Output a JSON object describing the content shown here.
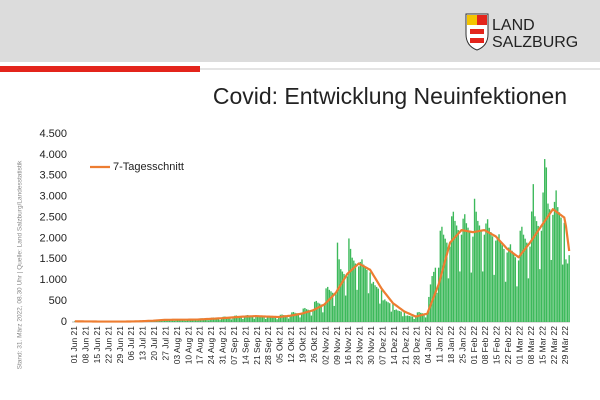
{
  "logo": {
    "line1": "LAND",
    "line2": "SALZBURG"
  },
  "source": "Stand: 31. März 2022, 08.30 Uhr | Quelle: Land Salzburg/Landesstatistik",
  "chart_data": {
    "type": "bar",
    "title": "Covid: Entwicklung Neuinfektionen",
    "ylim": [
      0,
      4500
    ],
    "yticks": [
      0,
      {
        "value": 500,
        "label": "500"
      },
      {
        "value": 1000,
        "label": "1.000"
      },
      {
        "value": 1500,
        "label": "1.500"
      },
      {
        "value": 2000,
        "label": "2.000"
      },
      {
        "value": 2500,
        "label": "2.500"
      },
      {
        "value": 3000,
        "label": "3.000"
      },
      {
        "value": 3500,
        "label": "3.500"
      },
      {
        "value": 4000,
        "label": "4.000"
      },
      {
        "value": 4500,
        "label": "4.500"
      }
    ],
    "grid": false,
    "legend": "top-left",
    "categories": [
      "01 Jun 21",
      null,
      null,
      null,
      null,
      null,
      null,
      "08 Jun 21",
      null,
      null,
      null,
      null,
      null,
      null,
      "15 Jun 21",
      null,
      null,
      null,
      null,
      null,
      null,
      "22 Jun 21",
      null,
      null,
      null,
      null,
      null,
      null,
      "29 Jun 21",
      null,
      null,
      null,
      null,
      null,
      null,
      "06 Jul 21",
      null,
      null,
      null,
      null,
      null,
      null,
      "13 Jul 21",
      null,
      null,
      null,
      null,
      null,
      null,
      "20 Jul 21",
      null,
      null,
      null,
      null,
      null,
      null,
      "27 Jul 21",
      null,
      null,
      null,
      null,
      null,
      null,
      "03 Aug 21",
      null,
      null,
      null,
      null,
      null,
      null,
      "10 Aug 21",
      null,
      null,
      null,
      null,
      null,
      null,
      "17 Aug 21",
      null,
      null,
      null,
      null,
      null,
      null,
      "24 Aug 21",
      null,
      null,
      null,
      null,
      null,
      null,
      "31 Aug 21",
      null,
      null,
      null,
      null,
      null,
      null,
      "07 Sep 21",
      null,
      null,
      null,
      null,
      null,
      null,
      "14 Sep 21",
      null,
      null,
      null,
      null,
      null,
      null,
      "21 Sep 21",
      null,
      null,
      null,
      null,
      null,
      null,
      "28 Sep 21",
      null,
      null,
      null,
      null,
      null,
      null,
      "05 Okt 21",
      null,
      null,
      null,
      null,
      null,
      null,
      "12 Okt 21",
      null,
      null,
      null,
      null,
      null,
      null,
      "19 Okt 21",
      null,
      null,
      null,
      null,
      null,
      null,
      "26 Okt 21",
      null,
      null,
      null,
      null,
      null,
      null,
      "02 Nov 21",
      null,
      null,
      null,
      null,
      null,
      null,
      "09 Nov 21",
      null,
      null,
      null,
      null,
      null,
      null,
      "16 Nov 21",
      null,
      null,
      null,
      null,
      null,
      null,
      "23 Nov 21",
      null,
      null,
      null,
      null,
      null,
      null,
      "30 Nov 21",
      null,
      null,
      null,
      null,
      null,
      null,
      "07 Dez 21",
      null,
      null,
      null,
      null,
      null,
      null,
      "14 Dez 21",
      null,
      null,
      null,
      null,
      null,
      null,
      "21 Dez 21",
      null,
      null,
      null,
      null,
      null,
      null,
      "28 Dez 21",
      null,
      null,
      null,
      null,
      null,
      null,
      "04 Jan 22",
      null,
      null,
      null,
      null,
      null,
      null,
      "11 Jan 22",
      null,
      null,
      null,
      null,
      null,
      null,
      "18 Jan 22",
      null,
      null,
      null,
      null,
      null,
      null,
      "25 Jan 22",
      null,
      null,
      null,
      null,
      null,
      null,
      "01 Feb 22",
      null,
      null,
      null,
      null,
      null,
      null,
      "08 Feb 22",
      null,
      null,
      null,
      null,
      null,
      null,
      "15 Feb 22",
      null,
      null,
      null,
      null,
      null,
      null,
      "22 Feb 22",
      null,
      null,
      null,
      null,
      null,
      null,
      "01 Mar 22",
      null,
      null,
      null,
      null,
      null,
      null,
      "08 Mar 22",
      null,
      null,
      null,
      null,
      null,
      null,
      "15 Mar 22",
      null,
      null,
      null,
      null,
      null,
      null,
      "22 Mar 22",
      null,
      null,
      null,
      null,
      null,
      null,
      "29 Mär 22",
      null,
      null
    ],
    "series": [
      {
        "type": "bar",
        "color": "#3cb95a",
        "values": [
          17,
          18,
          17,
          16,
          15,
          8,
          14,
          14,
          14,
          13,
          13,
          12,
          7,
          11,
          12,
          12,
          11,
          11,
          10,
          6,
          10,
          12,
          12,
          11,
          11,
          10,
          6,
          10,
          14,
          14,
          13,
          13,
          12,
          7,
          11,
          21,
          22,
          20,
          19,
          18,
          10,
          17,
          35,
          36,
          33,
          32,
          30,
          17,
          29,
          58,
          60,
          55,
          53,
          50,
          28,
          48,
          63,
          66,
          61,
          58,
          55,
          30,
          52,
          63,
          66,
          61,
          58,
          55,
          30,
          52,
          69,
          72,
          66,
          63,
          60,
          33,
          57,
          86,
          90,
          83,
          79,
          75,
          41,
          71,
          104,
          108,
          99,
          95,
          90,
          50,
          86,
          127,
          132,
          121,
          116,
          110,
          61,
          105,
          150,
          156,
          143,
          137,
          130,
          72,
          124,
          161,
          168,
          154,
          147,
          140,
          77,
          133,
          150,
          156,
          143,
          137,
          130,
          72,
          124,
          138,
          144,
          132,
          126,
          120,
          66,
          114,
          173,
          180,
          165,
          158,
          150,
          83,
          143,
          230,
          240,
          220,
          210,
          200,
          110,
          190,
          322,
          336,
          308,
          294,
          280,
          154,
          266,
          483,
          504,
          462,
          441,
          420,
          231,
          399,
          805,
          840,
          770,
          735,
          700,
          385,
          665,
          1900,
          1500,
          1265,
          1208,
          1150,
          633,
          1093,
          2000,
          1750,
          1540,
          1470,
          1400,
          770,
          1330,
          1438,
          1500,
          1375,
          1313,
          1250,
          688,
          1188,
          920,
          960,
          880,
          840,
          800,
          440,
          760,
          518,
          540,
          495,
          473,
          450,
          248,
          428,
          288,
          300,
          275,
          263,
          250,
          138,
          238,
          150,
          156,
          143,
          137,
          130,
          72,
          124,
          230,
          240,
          220,
          210,
          200,
          110,
          190,
          600,
          900,
          1100,
          1200,
          1300,
          700,
          1300,
          2185,
          2280,
          2090,
          1995,
          1900,
          1045,
          1805,
          2530,
          2640,
          2420,
          2310,
          2200,
          1210,
          2090,
          2473,
          2580,
          2365,
          2258,
          2150,
          1183,
          2043,
          2950,
          2640,
          2420,
          2310,
          2200,
          1210,
          2090,
          2358,
          2460,
          2255,
          2153,
          2050,
          1128,
          1948,
          2013,
          2100,
          1925,
          1838,
          1750,
          963,
          1663,
          1783,
          1860,
          1705,
          1628,
          1550,
          853,
          1473,
          2185,
          2280,
          2090,
          1995,
          1900,
          1045,
          1805,
          2645,
          3300,
          2530,
          2415,
          2300,
          1265,
          2185,
          3100,
          3900,
          3700,
          2835,
          2700,
          1485,
          2565,
          2875,
          3150,
          2750,
          2625,
          2500,
          1375,
          2375,
          1500,
          1400,
          1600
        ]
      },
      {
        "type": "line",
        "name": "7-Tagesschnitt",
        "color": "#ed7d31",
        "values": [
          16,
          16,
          15,
          15,
          15,
          15,
          14,
          14,
          14,
          13,
          13,
          12,
          12,
          12,
          11,
          11,
          11,
          10,
          10,
          10,
          10,
          10,
          10,
          10,
          10,
          10,
          10,
          10,
          10,
          11,
          11,
          11,
          12,
          12,
          12,
          13,
          14,
          15,
          16,
          17,
          18,
          18,
          20,
          22,
          24,
          26,
          28,
          29,
          30,
          33,
          36,
          39,
          42,
          45,
          48,
          50,
          51,
          52,
          53,
          53,
          54,
          55,
          55,
          55,
          55,
          55,
          55,
          55,
          55,
          55,
          56,
          57,
          57,
          58,
          59,
          59,
          60,
          62,
          64,
          66,
          69,
          71,
          73,
          75,
          77,
          79,
          81,
          84,
          86,
          88,
          90,
          93,
          96,
          99,
          102,
          105,
          108,
          110,
          113,
          116,
          119,
          122,
          125,
          128,
          130,
          131,
          133,
          134,
          136,
          137,
          139,
          140,
          139,
          137,
          136,
          134,
          133,
          131,
          130,
          129,
          127,
          126,
          124,
          123,
          121,
          120,
          124,
          129,
          133,
          137,
          141,
          146,
          150,
          157,
          164,
          171,
          179,
          186,
          193,
          200,
          211,
          223,
          234,
          246,
          257,
          269,
          280,
          300,
          320,
          340,
          360,
          380,
          400,
          420,
          460,
          500,
          540,
          580,
          620,
          660,
          700,
          764,
          829,
          893,
          957,
          1021,
          1086,
          1150,
          1186,
          1221,
          1257,
          1293,
          1329,
          1364,
          1400,
          1379,
          1357,
          1336,
          1314,
          1293,
          1271,
          1250,
          1186,
          1121,
          1057,
          993,
          929,
          864,
          800,
          750,
          700,
          650,
          600,
          550,
          500,
          450,
          421,
          393,
          364,
          336,
          307,
          279,
          250,
          233,
          216,
          199,
          181,
          164,
          147,
          130,
          140,
          150,
          160,
          170,
          180,
          190,
          200,
          300,
          400,
          500,
          600,
          700,
          800,
          900,
          1043,
          1186,
          1329,
          1471,
          1614,
          1757,
          1900,
          1943,
          1986,
          2029,
          2071,
          2114,
          2157,
          2200,
          2193,
          2186,
          2179,
          2171,
          2164,
          2157,
          2150,
          2157,
          2164,
          2171,
          2179,
          2186,
          2193,
          2200,
          2179,
          2157,
          2136,
          2114,
          2093,
          2071,
          2050,
          2007,
          1964,
          1921,
          1879,
          1836,
          1793,
          1750,
          1721,
          1693,
          1664,
          1636,
          1607,
          1579,
          1550,
          1600,
          1650,
          1700,
          1750,
          1800,
          1850,
          1900,
          1957,
          2014,
          2071,
          2129,
          2186,
          2243,
          2300,
          2357,
          2414,
          2471,
          2529,
          2586,
          2643,
          2700,
          2671,
          2643,
          2614,
          2586,
          2557,
          2529,
          2500,
          2300,
          2000,
          1700
        ]
      }
    ]
  }
}
